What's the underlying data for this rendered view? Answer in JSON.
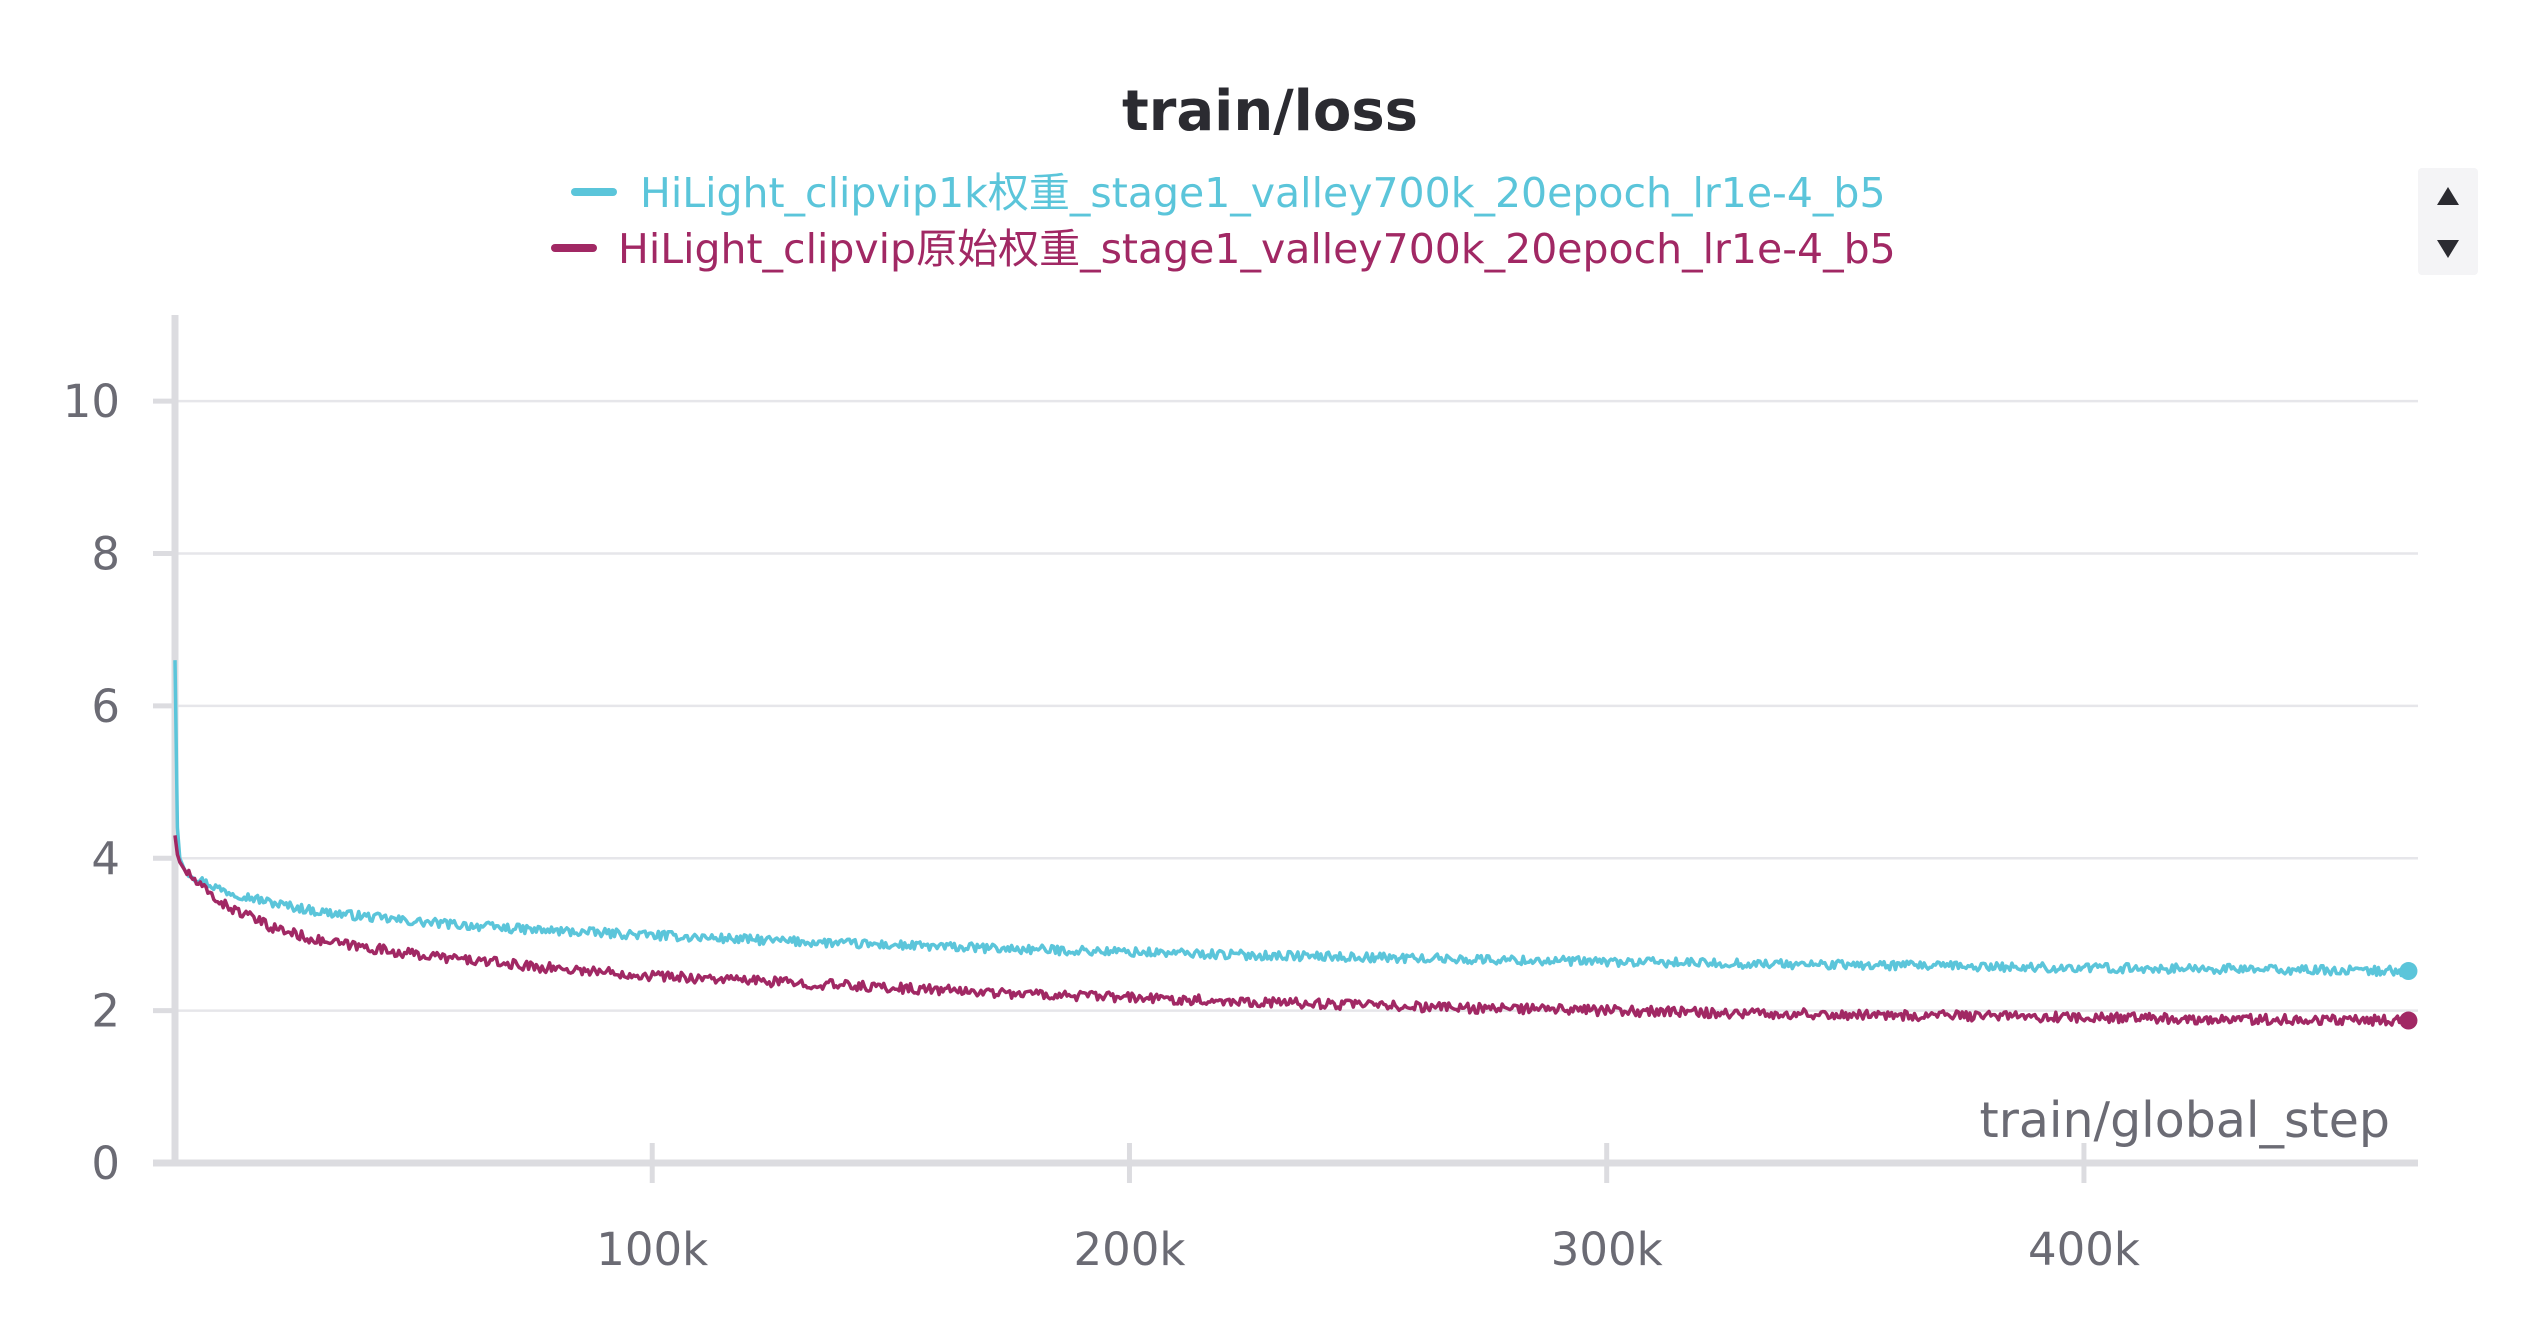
{
  "chart_data": {
    "type": "line",
    "title": "train/loss",
    "xlabel": "train/global_step",
    "ylabel": "",
    "xlim": [
      0,
      470000
    ],
    "ylim": [
      0,
      11
    ],
    "xticks": [
      100000,
      200000,
      300000,
      400000
    ],
    "xtick_labels": [
      "100k",
      "200k",
      "300k",
      "400k"
    ],
    "yticks": [
      0,
      2,
      4,
      6,
      8,
      10
    ],
    "ytick_labels": [
      "0",
      "2",
      "4",
      "6",
      "8",
      "10"
    ],
    "grid": true,
    "legend_position": "top-center",
    "series": [
      {
        "name": "HiLight_clipvip1k权重_stage1_valley700k_20epoch_lr1e-4_b5",
        "color": "#5bc5da",
        "x": [
          0,
          500,
          1000,
          2000,
          5000,
          10000,
          20000,
          30000,
          50000,
          75000,
          100000,
          125000,
          150000,
          175000,
          200000,
          225000,
          250000,
          275000,
          300000,
          325000,
          350000,
          375000,
          400000,
          425000,
          450000,
          468000
        ],
        "values": [
          6.6,
          4.4,
          4.0,
          3.85,
          3.72,
          3.58,
          3.42,
          3.3,
          3.17,
          3.06,
          2.99,
          2.92,
          2.86,
          2.81,
          2.77,
          2.73,
          2.7,
          2.67,
          2.64,
          2.62,
          2.6,
          2.58,
          2.56,
          2.55,
          2.53,
          2.52
        ]
      },
      {
        "name": "HiLight_clipvip原始权重_stage1_valley700k_20epoch_lr1e-4_b5",
        "color": "#a12864",
        "x": [
          0,
          500,
          1000,
          2000,
          5000,
          10000,
          20000,
          30000,
          50000,
          75000,
          100000,
          125000,
          150000,
          175000,
          200000,
          225000,
          250000,
          275000,
          300000,
          325000,
          350000,
          375000,
          400000,
          425000,
          450000,
          468000
        ],
        "values": [
          4.3,
          4.05,
          3.95,
          3.85,
          3.65,
          3.4,
          3.1,
          2.92,
          2.74,
          2.58,
          2.46,
          2.38,
          2.3,
          2.23,
          2.17,
          2.12,
          2.07,
          2.03,
          2.0,
          1.97,
          1.95,
          1.93,
          1.91,
          1.89,
          1.88,
          1.87
        ]
      }
    ]
  }
}
